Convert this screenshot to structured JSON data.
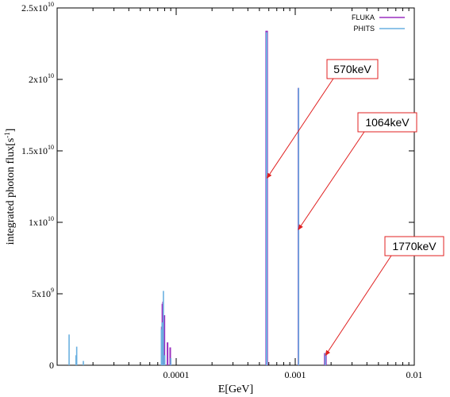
{
  "chart_data": {
    "type": "bar",
    "xscale": "log",
    "xlabel": "E[GeV]",
    "ylabel_main": "integrated photon flux[s",
    "ylabel_exp": "-1",
    "ylabel_close": "]",
    "xlim": [
      1e-05,
      0.01
    ],
    "ylim": [
      0,
      25000000000
    ],
    "grid": false,
    "legend_position": "top-right",
    "x_ticks": [
      {
        "value": 0.0001,
        "label": "0.0001"
      },
      {
        "value": 0.001,
        "label": "0.001"
      },
      {
        "value": 0.01,
        "label": "0.01"
      }
    ],
    "y_ticks": [
      {
        "value": 0,
        "label": "0"
      },
      {
        "value": 5000000000,
        "mant": "5x10",
        "exp": "9"
      },
      {
        "value": 10000000000,
        "mant": "1x10",
        "exp": "10"
      },
      {
        "value": 15000000000,
        "mant": "1.5x10",
        "exp": "10"
      },
      {
        "value": 20000000000,
        "mant": "2x10",
        "exp": "10"
      },
      {
        "value": 25000000000,
        "mant": "2.5x10",
        "exp": "10"
      }
    ],
    "series": [
      {
        "name": "FLUKA",
        "color": "#9a2fc0",
        "points": [
          {
            "x": 7.56e-05,
            "y": 2700000000
          },
          {
            "x": 7.66e-05,
            "y": 4300000000
          },
          {
            "x": 7.76e-05,
            "y": 4450000000
          },
          {
            "x": 7.86e-05,
            "y": 2100000000
          },
          {
            "x": 7.96e-05,
            "y": 3500000000
          },
          {
            "x": 8.46e-05,
            "y": 1600000000
          },
          {
            "x": 8.91e-05,
            "y": 1250000000
          },
          {
            "x": 0.00057,
            "y": 23400000000
          },
          {
            "x": 0.000581,
            "y": 23400000000
          },
          {
            "x": 0.001064,
            "y": 19400000000
          },
          {
            "x": 0.00177,
            "y": 850000000
          },
          {
            "x": 0.00181,
            "y": 850000000
          }
        ]
      },
      {
        "name": "PHITS",
        "color": "#6ab0e0",
        "points": [
          {
            "x": 1.26e-05,
            "y": 2150000000
          },
          {
            "x": 1.44e-05,
            "y": 700000000
          },
          {
            "x": 1.46e-05,
            "y": 1300000000
          },
          {
            "x": 1.66e-05,
            "y": 300000000
          },
          {
            "x": 7.51e-05,
            "y": 2500000000
          },
          {
            "x": 7.61e-05,
            "y": 3000000000
          },
          {
            "x": 7.81e-05,
            "y": 5200000000
          },
          {
            "x": 8.01e-05,
            "y": 700000000
          },
          {
            "x": 9.01e-05,
            "y": 500000000
          },
          {
            "x": 0.000573,
            "y": 23300000000
          },
          {
            "x": 0.000577,
            "y": 23300000000
          },
          {
            "x": 0.001067,
            "y": 19400000000
          },
          {
            "x": 0.00179,
            "y": 850000000
          }
        ]
      }
    ],
    "annotations": [
      {
        "text": "570keV",
        "target_x": 0.00058,
        "target_y": 13100000000
      },
      {
        "text": "1064keV",
        "target_x": 0.001064,
        "target_y": 9500000000
      },
      {
        "text": "1770keV",
        "target_x": 0.0018,
        "target_y": 700000000
      }
    ]
  }
}
